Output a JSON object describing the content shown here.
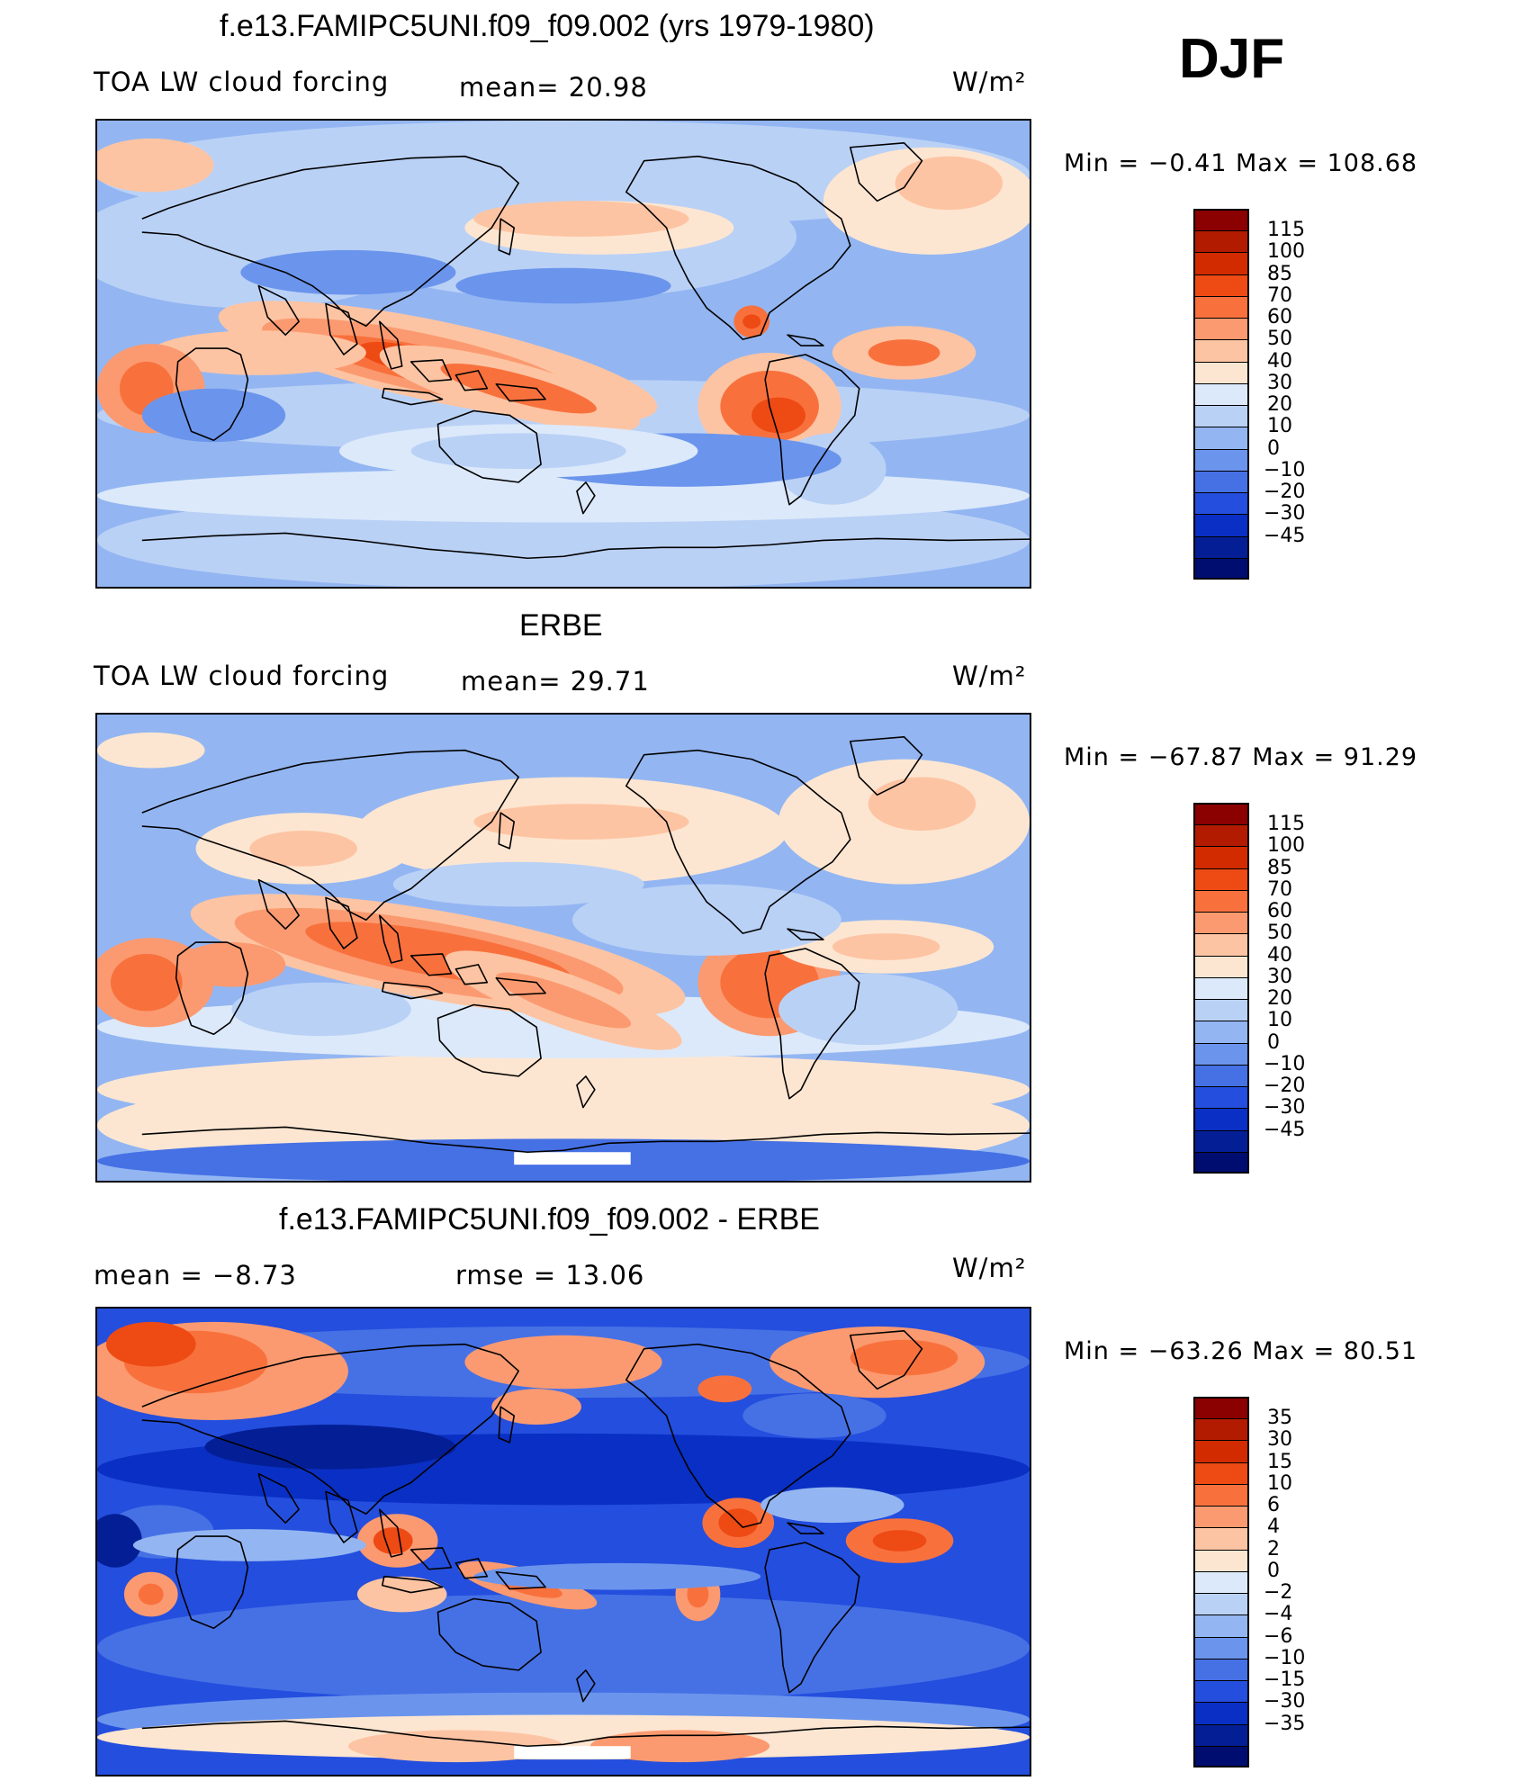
{
  "season": "DJF",
  "panels": [
    {
      "title": "f.e13.FAMIPC5UNI.f09_f09.002 (yrs 1979-1980)",
      "left_label": "TOA LW cloud forcing",
      "mid_label": "mean=  20.98",
      "units": "W/m²",
      "minmax": "Min  =   −0.41  Max  =  108.68",
      "colorbar": {
        "labels": [
          "115",
          "100",
          "85",
          "70",
          "60",
          "50",
          "40",
          "30",
          "20",
          "10",
          "0",
          "−10",
          "−20",
          "−30",
          "−45"
        ],
        "colors": [
          "#8b0000",
          "#b31b00",
          "#d22b00",
          "#ee4a14",
          "#f8713d",
          "#fb9a70",
          "#fdc4a3",
          "#fde6d1",
          "#dce9fa",
          "#bad1f6",
          "#93b6f2",
          "#6b95ec",
          "#4671e5",
          "#244ede",
          "#0a2fc4",
          "#041f96",
          "#000d70"
        ]
      }
    },
    {
      "title": "ERBE",
      "left_label": "TOA LW cloud forcing",
      "mid_label": "mean=  29.71",
      "units": "W/m²",
      "minmax": "Min  = −67.87  Max  =   91.29",
      "colorbar": {
        "labels": [
          "115",
          "100",
          "85",
          "70",
          "60",
          "50",
          "40",
          "30",
          "20",
          "10",
          "0",
          "−10",
          "−20",
          "−30",
          "−45"
        ],
        "colors": [
          "#8b0000",
          "#b31b00",
          "#d22b00",
          "#ee4a14",
          "#f8713d",
          "#fb9a70",
          "#fdc4a3",
          "#fde6d1",
          "#dce9fa",
          "#bad1f6",
          "#93b6f2",
          "#6b95ec",
          "#4671e5",
          "#244ede",
          "#0a2fc4",
          "#041f96",
          "#000d70"
        ]
      }
    },
    {
      "title": "f.e13.FAMIPC5UNI.f09_f09.002 - ERBE",
      "left_label": "mean  =    −8.73",
      "mid_label": "rmse  =    13.06",
      "units": "W/m²",
      "minmax": "Min  = −63.26  Max  =   80.51",
      "colorbar": {
        "labels": [
          "35",
          "30",
          "15",
          "10",
          "6",
          "4",
          "2",
          "0",
          "−2",
          "−4",
          "−6",
          "−10",
          "−15",
          "−30",
          "−35"
        ],
        "colors": [
          "#8b0000",
          "#b31b00",
          "#d22b00",
          "#ee4a14",
          "#f8713d",
          "#fb9a70",
          "#fdc4a3",
          "#fde6d1",
          "#dce9fa",
          "#bad1f6",
          "#93b6f2",
          "#6b95ec",
          "#4671e5",
          "#244ede",
          "#0a2fc4",
          "#041f96",
          "#000d70"
        ]
      }
    }
  ],
  "map_palette": {
    "ocean_base_1": "#93b6f2",
    "ocean_base_2": "#93b6f2",
    "ocean_base_3": "#244ede",
    "coast": "#000000"
  }
}
